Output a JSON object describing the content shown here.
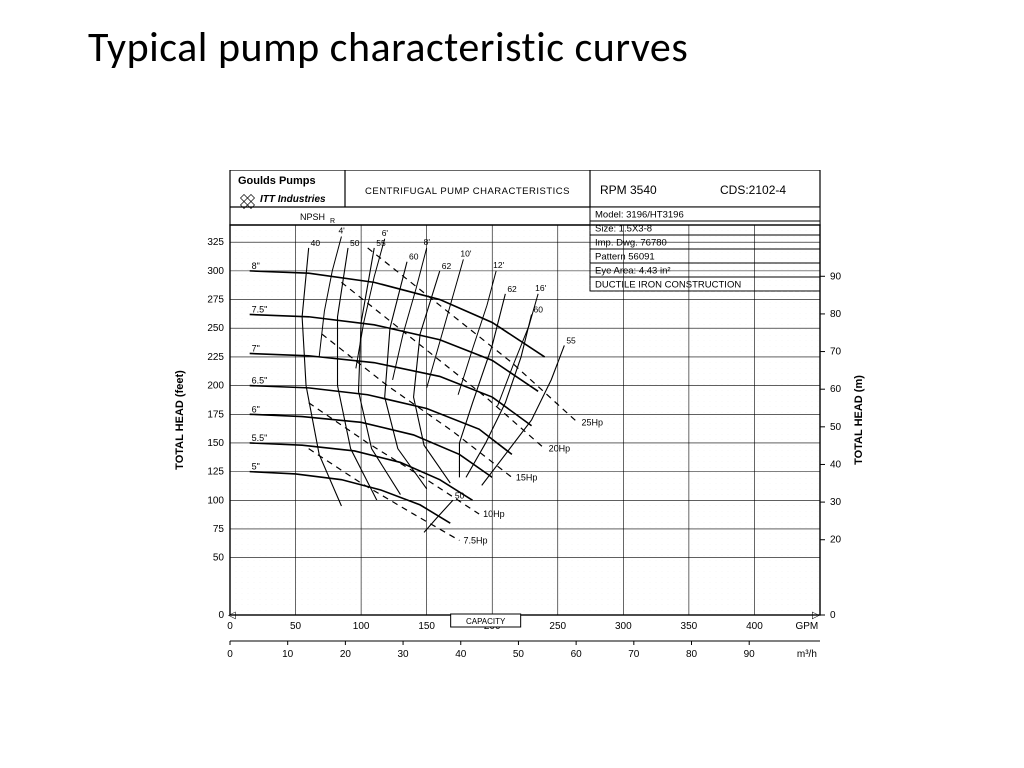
{
  "title": "Typical pump characteristic curves",
  "header": {
    "brand": "Goulds Pumps",
    "sub_brand": "ITT Industries",
    "npsh_label": "NPSH",
    "npsh_sub": "R",
    "center_title": "CENTRIFUGAL PUMP CHARACTERISTICS",
    "rpm_label": "RPM",
    "rpm_value": "3540",
    "cds_label": "CDS:",
    "cds_value": "2102-4"
  },
  "info_box": {
    "rows": [
      "Model: 3196/HT3196",
      "Size: 1.5X3-8",
      "Imp. Dwg. 76780",
      "Pattern 56091",
      "Eye Area:  4.43 in²",
      "DUCTILE IRON CONSTRUCTION"
    ]
  },
  "axes": {
    "y_left_label": "TOTAL HEAD (feet)",
    "y_right_label": "TOTAL HEAD (m)",
    "x_bottom_label": "CAPACITY",
    "x1_unit": "GPM",
    "x2_unit": "m³/h",
    "y_left_ticks": [
      0,
      50,
      75,
      100,
      125,
      150,
      175,
      200,
      225,
      250,
      275,
      300,
      325
    ],
    "y_right_ticks": [
      0,
      20,
      30,
      40,
      50,
      60,
      70,
      80,
      90
    ],
    "x1_ticks": [
      0,
      50,
      100,
      150,
      200,
      250,
      300,
      350,
      400
    ],
    "x2_ticks": [
      0,
      10,
      20,
      30,
      40,
      50,
      60,
      70,
      80,
      90
    ]
  },
  "plot_style": {
    "stroke": "#000000",
    "grid_major": "#000000",
    "grid_minor": "#b8b8b8",
    "line_width_curve": 1.6,
    "line_width_dash": 1.2,
    "font_tick": 10,
    "font_label": 10,
    "font_header": 10,
    "background": "#ffffff"
  },
  "impeller_curves": [
    {
      "label": "8\"",
      "pts": [
        [
          15,
          300
        ],
        [
          60,
          298
        ],
        [
          110,
          290
        ],
        [
          160,
          275
        ],
        [
          200,
          255
        ],
        [
          240,
          225
        ]
      ]
    },
    {
      "label": "7.5\"",
      "pts": [
        [
          15,
          262
        ],
        [
          60,
          260
        ],
        [
          110,
          253
        ],
        [
          160,
          240
        ],
        [
          200,
          222
        ],
        [
          235,
          195
        ]
      ]
    },
    {
      "label": "7\"",
      "pts": [
        [
          15,
          228
        ],
        [
          60,
          226
        ],
        [
          110,
          220
        ],
        [
          160,
          208
        ],
        [
          200,
          190
        ],
        [
          230,
          165
        ]
      ]
    },
    {
      "label": "6.5\"",
      "pts": [
        [
          15,
          200
        ],
        [
          60,
          198
        ],
        [
          105,
          192
        ],
        [
          150,
          180
        ],
        [
          190,
          162
        ],
        [
          215,
          140
        ]
      ]
    },
    {
      "label": "6\"",
      "pts": [
        [
          15,
          175
        ],
        [
          55,
          173
        ],
        [
          100,
          168
        ],
        [
          140,
          157
        ],
        [
          175,
          140
        ],
        [
          200,
          120
        ]
      ]
    },
    {
      "label": "5.5\"",
      "pts": [
        [
          15,
          150
        ],
        [
          55,
          148
        ],
        [
          95,
          143
        ],
        [
          130,
          133
        ],
        [
          160,
          118
        ],
        [
          185,
          100
        ]
      ]
    },
    {
      "label": "5\"",
      "pts": [
        [
          15,
          125
        ],
        [
          50,
          123
        ],
        [
          85,
          118
        ],
        [
          115,
          109
        ],
        [
          145,
          96
        ],
        [
          168,
          80
        ]
      ]
    }
  ],
  "efficiency_curves": [
    {
      "label": "40",
      "pts": [
        [
          60,
          320
        ],
        [
          55,
          260
        ],
        [
          58,
          200
        ],
        [
          68,
          140
        ],
        [
          85,
          95
        ]
      ]
    },
    {
      "label": "50",
      "pts": [
        [
          90,
          320
        ],
        [
          82,
          260
        ],
        [
          82,
          200
        ],
        [
          92,
          145
        ],
        [
          112,
          100
        ]
      ]
    },
    {
      "label": "55",
      "pts": [
        [
          110,
          320
        ],
        [
          100,
          255
        ],
        [
          98,
          195
        ],
        [
          108,
          145
        ],
        [
          130,
          105
        ]
      ]
    },
    {
      "label": "60",
      "pts": [
        [
          135,
          308
        ],
        [
          122,
          250
        ],
        [
          118,
          190
        ],
        [
          128,
          145
        ],
        [
          150,
          110
        ]
      ]
    },
    {
      "label": "62",
      "pts": [
        [
          160,
          300
        ],
        [
          145,
          245
        ],
        [
          140,
          190
        ],
        [
          148,
          148
        ],
        [
          168,
          115
        ]
      ]
    },
    {
      "label": "62",
      "pts": [
        [
          210,
          280
        ],
        [
          200,
          235
        ],
        [
          185,
          185
        ],
        [
          175,
          150
        ],
        [
          175,
          120
        ]
      ]
    },
    {
      "label": "60",
      "pts": [
        [
          230,
          262
        ],
        [
          222,
          225
        ],
        [
          210,
          185
        ],
        [
          195,
          150
        ],
        [
          180,
          120
        ]
      ]
    },
    {
      "label": "55",
      "pts": [
        [
          255,
          235
        ],
        [
          245,
          205
        ],
        [
          230,
          170
        ],
        [
          210,
          140
        ],
        [
          192,
          113
        ]
      ]
    },
    {
      "label": "50",
      "pts": [
        [
          170,
          100
        ],
        [
          158,
          85
        ],
        [
          148,
          72
        ]
      ]
    }
  ],
  "npsh_curves": [
    {
      "label": "4'",
      "pts": [
        [
          85,
          330
        ],
        [
          78,
          300
        ],
        [
          72,
          265
        ],
        [
          68,
          225
        ]
      ]
    },
    {
      "label": "6'",
      "pts": [
        [
          118,
          328
        ],
        [
          110,
          295
        ],
        [
          102,
          255
        ],
        [
          96,
          215
        ]
      ]
    },
    {
      "label": "8'",
      "pts": [
        [
          150,
          320
        ],
        [
          142,
          285
        ],
        [
          132,
          245
        ],
        [
          124,
          205
        ]
      ]
    },
    {
      "label": "10'",
      "pts": [
        [
          178,
          310
        ],
        [
          170,
          278
        ],
        [
          160,
          238
        ],
        [
          150,
          198
        ]
      ]
    },
    {
      "label": "12'",
      "pts": [
        [
          203,
          300
        ],
        [
          196,
          270
        ],
        [
          185,
          232
        ],
        [
          174,
          192
        ]
      ]
    },
    {
      "label": "16'",
      "pts": [
        [
          235,
          280
        ],
        [
          228,
          252
        ],
        [
          216,
          218
        ],
        [
          204,
          182
        ]
      ]
    }
  ],
  "power_curves": [
    {
      "label": "7.5Hp",
      "pts": [
        [
          60,
          145
        ],
        [
          100,
          115
        ],
        [
          140,
          88
        ],
        [
          175,
          65
        ]
      ]
    },
    {
      "label": "10Hp",
      "pts": [
        [
          60,
          185
        ],
        [
          105,
          150
        ],
        [
          150,
          118
        ],
        [
          190,
          88
        ]
      ]
    },
    {
      "label": "15Hp",
      "pts": [
        [
          70,
          245
        ],
        [
          120,
          200
        ],
        [
          170,
          160
        ],
        [
          215,
          120
        ]
      ]
    },
    {
      "label": "20Hp",
      "pts": [
        [
          85,
          290
        ],
        [
          140,
          240
        ],
        [
          195,
          190
        ],
        [
          240,
          145
        ]
      ]
    },
    {
      "label": "25Hp",
      "pts": [
        [
          105,
          320
        ],
        [
          160,
          270
        ],
        [
          215,
          220
        ],
        [
          265,
          168
        ]
      ]
    }
  ]
}
